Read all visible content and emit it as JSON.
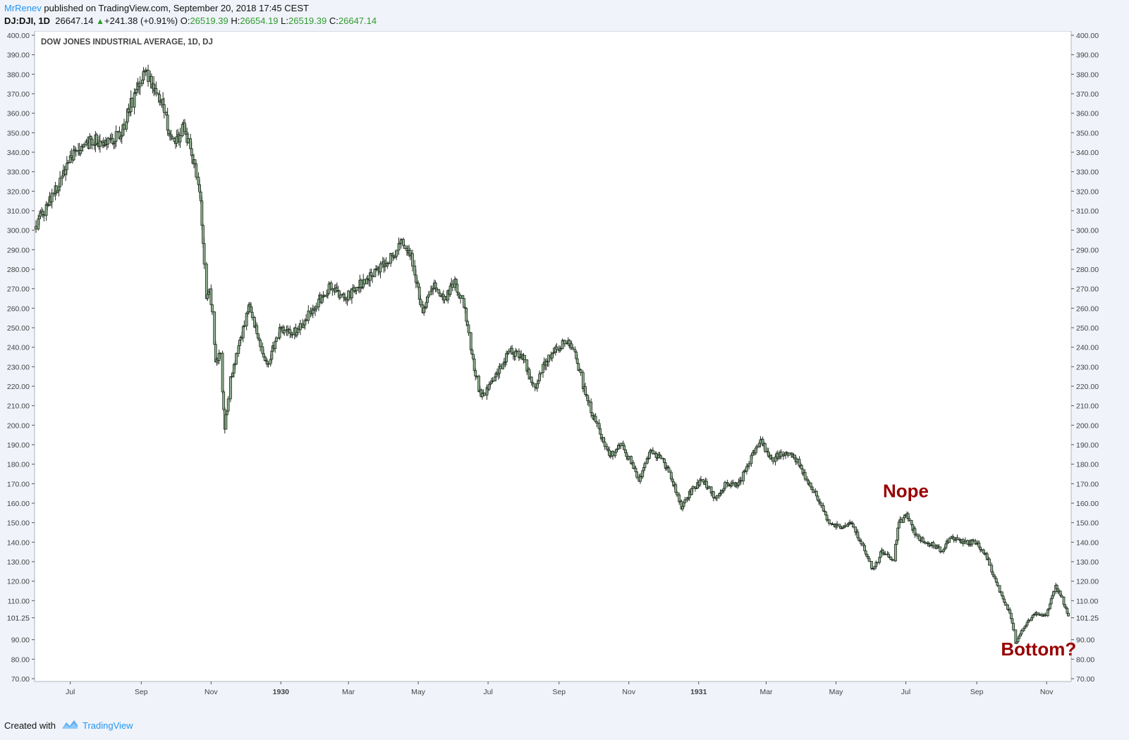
{
  "header": {
    "author": "MrRenev",
    "published": "published on TradingView.com, September 20, 2018 17:45 CEST",
    "symbol": "DJ:DJI, 1D",
    "last": "26647.14",
    "arrow": "▲",
    "change": "+241.38 (+0.91%)",
    "o_label": "O:",
    "o_value": "26519.39",
    "h_label": "H:",
    "h_value": "26654.19",
    "l_label": "L:",
    "l_value": "26519.39",
    "c_label": "C:",
    "c_value": "26647.14"
  },
  "footer": {
    "created": "Created with",
    "brand": "TradingView"
  },
  "colors": {
    "bar": "#1f2a1f",
    "bar_fill": "#8fb08f",
    "annotation": "#990000",
    "brand": "#2196f3",
    "value_green": "#2e9b2e"
  },
  "chart_data": {
    "type": "ohlc",
    "title": "DOW JONES INDUSTRIAL AVERAGE, 1D, DJ",
    "ylim": [
      70,
      400
    ],
    "y_ticks": [
      "70.00",
      "80.00",
      "90.00",
      "110.00",
      "120.00",
      "130.00",
      "140.00",
      "150.00",
      "160.00",
      "170.00",
      "180.00",
      "190.00",
      "200.00",
      "210.00",
      "220.00",
      "230.00",
      "240.00",
      "250.00",
      "260.00",
      "270.00",
      "280.00",
      "290.00",
      "300.00",
      "310.00",
      "320.00",
      "330.00",
      "340.00",
      "350.00",
      "360.00",
      "370.00",
      "380.00",
      "390.00",
      "400.00"
    ],
    "last_price_label": "101.25",
    "x_ticks": [
      "Jul",
      "Sep",
      "Nov",
      "1930",
      "Mar",
      "May",
      "Jul",
      "Sep",
      "Nov",
      "1931",
      "Mar",
      "May",
      "Jul",
      "Sep",
      "Nov"
    ],
    "series_path": [
      [
        "1929-06-01",
        302
      ],
      [
        "1929-06-20",
        322
      ],
      [
        "1929-07-05",
        340
      ],
      [
        "1929-07-20",
        346
      ],
      [
        "1929-08-05",
        345
      ],
      [
        "1929-08-15",
        350
      ],
      [
        "1929-08-25",
        368
      ],
      [
        "1929-09-03",
        381
      ],
      [
        "1929-09-15",
        372
      ],
      [
        "1929-09-25",
        352
      ],
      [
        "1929-10-02",
        345
      ],
      [
        "1929-10-08",
        355
      ],
      [
        "1929-10-15",
        338
      ],
      [
        "1929-10-22",
        322
      ],
      [
        "1929-10-28",
        265
      ],
      [
        "1929-10-31",
        272
      ],
      [
        "1929-11-05",
        232
      ],
      [
        "1929-11-09",
        238
      ],
      [
        "1929-11-13",
        199
      ],
      [
        "1929-11-18",
        224
      ],
      [
        "1929-11-25",
        240
      ],
      [
        "1929-12-05",
        262
      ],
      [
        "1929-12-12",
        245
      ],
      [
        "1929-12-20",
        231
      ],
      [
        "1929-12-31",
        248
      ],
      [
        "1930-01-15",
        248
      ],
      [
        "1930-01-31",
        262
      ],
      [
        "1930-02-15",
        272
      ],
      [
        "1930-02-25",
        264
      ],
      [
        "1930-03-10",
        272
      ],
      [
        "1930-03-25",
        278
      ],
      [
        "1930-04-10",
        288
      ],
      [
        "1930-04-17",
        294
      ],
      [
        "1930-04-25",
        286
      ],
      [
        "1930-05-05",
        258
      ],
      [
        "1930-05-15",
        272
      ],
      [
        "1930-05-25",
        265
      ],
      [
        "1930-06-01",
        274
      ],
      [
        "1930-06-10",
        262
      ],
      [
        "1930-06-18",
        232
      ],
      [
        "1930-06-25",
        214
      ],
      [
        "1930-07-05",
        222
      ],
      [
        "1930-07-20",
        238
      ],
      [
        "1930-08-01",
        234
      ],
      [
        "1930-08-10",
        218
      ],
      [
        "1930-08-20",
        232
      ],
      [
        "1930-09-01",
        240
      ],
      [
        "1930-09-07",
        244
      ],
      [
        "1930-09-15",
        236
      ],
      [
        "1930-09-25",
        214
      ],
      [
        "1930-10-05",
        198
      ],
      [
        "1930-10-15",
        184
      ],
      [
        "1930-10-25",
        190
      ],
      [
        "1930-11-05",
        178
      ],
      [
        "1930-11-10",
        172
      ],
      [
        "1930-11-20",
        186
      ],
      [
        "1930-12-01",
        182
      ],
      [
        "1930-12-10",
        170
      ],
      [
        "1930-12-17",
        158
      ],
      [
        "1930-12-25",
        166
      ],
      [
        "1931-01-05",
        172
      ],
      [
        "1931-01-15",
        163
      ],
      [
        "1931-01-25",
        170
      ],
      [
        "1931-02-05",
        170
      ],
      [
        "1931-02-15",
        182
      ],
      [
        "1931-02-24",
        193
      ],
      [
        "1931-03-05",
        182
      ],
      [
        "1931-03-15",
        186
      ],
      [
        "1931-03-25",
        185
      ],
      [
        "1931-04-05",
        172
      ],
      [
        "1931-04-15",
        163
      ],
      [
        "1931-04-25",
        150
      ],
      [
        "1931-05-05",
        148
      ],
      [
        "1931-05-15",
        149
      ],
      [
        "1931-05-25",
        137
      ],
      [
        "1931-06-02",
        126
      ],
      [
        "1931-06-10",
        135
      ],
      [
        "1931-06-20",
        131
      ],
      [
        "1931-06-25",
        150
      ],
      [
        "1931-07-02",
        154
      ],
      [
        "1931-07-10",
        143
      ],
      [
        "1931-07-20",
        140
      ],
      [
        "1931-08-01",
        136
      ],
      [
        "1931-08-10",
        142
      ],
      [
        "1931-08-20",
        140
      ],
      [
        "1931-09-01",
        140
      ],
      [
        "1931-09-10",
        132
      ],
      [
        "1931-09-20",
        116
      ],
      [
        "1931-09-30",
        104
      ],
      [
        "1931-10-05",
        88
      ],
      [
        "1931-10-10",
        95
      ],
      [
        "1931-10-20",
        103
      ],
      [
        "1931-11-01",
        103
      ],
      [
        "1931-11-09",
        118
      ],
      [
        "1931-11-15",
        110
      ],
      [
        "1931-11-20",
        102
      ]
    ],
    "annotations": [
      {
        "text": "Nope",
        "date": "1931-07-01",
        "value": 163
      },
      {
        "text": "Bottom?",
        "date": "1931-10-25",
        "value": 82
      }
    ]
  }
}
